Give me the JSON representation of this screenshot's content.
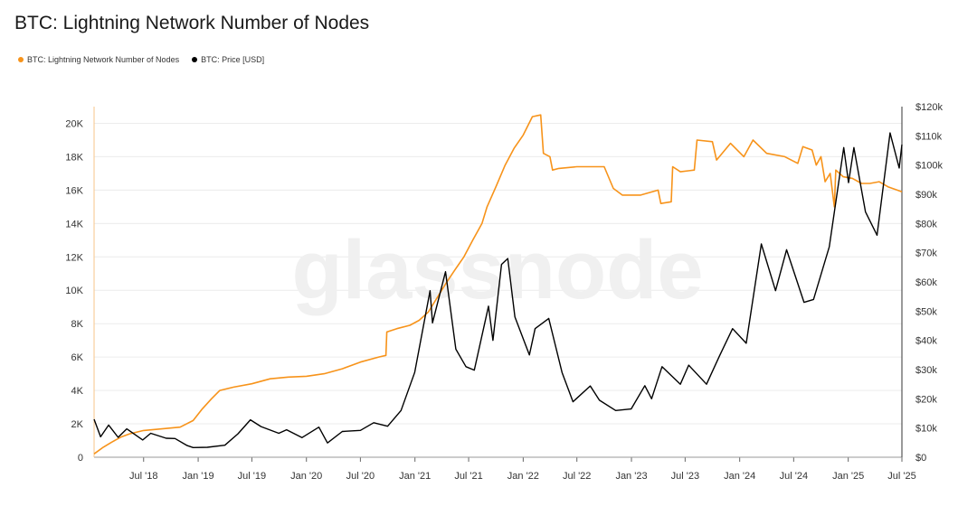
{
  "colors": {
    "nodes": "#f7931a",
    "price": "#000000",
    "grid": "#ececec",
    "watermark": "#f0f0f0"
  },
  "watermark": "glassnode",
  "chart_data": {
    "type": "line",
    "title": "BTC: Lightning Network Number of Nodes",
    "legend_position": "top-left",
    "grid": true,
    "x_ticks": [
      "Jul '18",
      "Jan '19",
      "Jul '19",
      "Jan '20",
      "Jul '20",
      "Jan '21",
      "Jul '21",
      "Jan '22",
      "Jul '22",
      "Jan '23",
      "Jul '23",
      "Jan '24",
      "Jul '24",
      "Jan '25",
      "Jul '25"
    ],
    "x_range": [
      "2018-01-15",
      "2025-07-01"
    ],
    "y_left": {
      "ticks": [
        "0",
        "2K",
        "4K",
        "6K",
        "8K",
        "10K",
        "12K",
        "14K",
        "16K",
        "18K",
        "20K"
      ],
      "ylim": [
        0,
        21000
      ]
    },
    "y_right": {
      "ticks": [
        "$0",
        "$10k",
        "$20k",
        "$30k",
        "$40k",
        "$50k",
        "$60k",
        "$70k",
        "$80k",
        "$90k",
        "$100k",
        "$110k",
        "$120k"
      ],
      "ylim": [
        0,
        120000
      ]
    },
    "series": [
      {
        "name": "BTC: Lightning Network Number of Nodes",
        "axis": "left",
        "points": [
          [
            "2018-01-15",
            200
          ],
          [
            "2018-02-15",
            600
          ],
          [
            "2018-03-15",
            900
          ],
          [
            "2018-04-15",
            1200
          ],
          [
            "2018-05-15",
            1400
          ],
          [
            "2018-07-01",
            1600
          ],
          [
            "2018-09-01",
            1700
          ],
          [
            "2018-11-01",
            1800
          ],
          [
            "2018-12-15",
            2200
          ],
          [
            "2019-01-15",
            2900
          ],
          [
            "2019-02-15",
            3500
          ],
          [
            "2019-03-15",
            4000
          ],
          [
            "2019-05-01",
            4200
          ],
          [
            "2019-07-01",
            4400
          ],
          [
            "2019-09-01",
            4700
          ],
          [
            "2019-11-01",
            4800
          ],
          [
            "2020-01-01",
            4850
          ],
          [
            "2020-03-01",
            5000
          ],
          [
            "2020-05-01",
            5300
          ],
          [
            "2020-07-01",
            5700
          ],
          [
            "2020-09-01",
            6000
          ],
          [
            "2020-09-25",
            6100
          ],
          [
            "2020-09-28",
            7500
          ],
          [
            "2020-11-01",
            7700
          ],
          [
            "2020-12-15",
            7900
          ],
          [
            "2021-01-15",
            8200
          ],
          [
            "2021-02-15",
            8700
          ],
          [
            "2021-03-15",
            9500
          ],
          [
            "2021-04-15",
            10400
          ],
          [
            "2021-05-15",
            11200
          ],
          [
            "2021-06-15",
            12000
          ],
          [
            "2021-07-15",
            13000
          ],
          [
            "2021-08-15",
            14000
          ],
          [
            "2021-09-01",
            15000
          ],
          [
            "2021-10-01",
            16200
          ],
          [
            "2021-11-01",
            17500
          ],
          [
            "2021-12-01",
            18500
          ],
          [
            "2022-01-01",
            19300
          ],
          [
            "2022-02-01",
            20400
          ],
          [
            "2022-03-01",
            20500
          ],
          [
            "2022-03-10",
            18200
          ],
          [
            "2022-04-01",
            18000
          ],
          [
            "2022-04-10",
            17200
          ],
          [
            "2022-05-01",
            17300
          ],
          [
            "2022-07-01",
            17400
          ],
          [
            "2022-10-01",
            17400
          ],
          [
            "2022-11-01",
            16100
          ],
          [
            "2022-12-01",
            15700
          ],
          [
            "2023-02-01",
            15700
          ],
          [
            "2023-04-01",
            16000
          ],
          [
            "2023-04-10",
            15200
          ],
          [
            "2023-05-15",
            15300
          ],
          [
            "2023-05-20",
            17400
          ],
          [
            "2023-06-15",
            17100
          ],
          [
            "2023-08-01",
            17200
          ],
          [
            "2023-08-10",
            19000
          ],
          [
            "2023-10-01",
            18900
          ],
          [
            "2023-10-15",
            17800
          ],
          [
            "2023-12-01",
            18800
          ],
          [
            "2024-01-15",
            18000
          ],
          [
            "2024-02-15",
            19000
          ],
          [
            "2024-04-01",
            18200
          ],
          [
            "2024-06-01",
            18000
          ],
          [
            "2024-07-15",
            17600
          ],
          [
            "2024-08-01",
            18600
          ],
          [
            "2024-09-01",
            18400
          ],
          [
            "2024-09-15",
            17500
          ],
          [
            "2024-10-01",
            18000
          ],
          [
            "2024-10-15",
            16500
          ],
          [
            "2024-11-01",
            17000
          ],
          [
            "2024-11-15",
            15000
          ],
          [
            "2024-11-20",
            17200
          ],
          [
            "2024-12-15",
            16800
          ],
          [
            "2025-01-15",
            16700
          ],
          [
            "2025-02-15",
            16400
          ],
          [
            "2025-03-15",
            16400
          ],
          [
            "2025-04-15",
            16500
          ],
          [
            "2025-05-15",
            16200
          ],
          [
            "2025-06-15",
            16000
          ],
          [
            "2025-07-01",
            15900
          ]
        ]
      },
      {
        "name": "BTC: Price [USD]",
        "axis": "right",
        "points": [
          [
            "2018-01-15",
            13000
          ],
          [
            "2018-02-06",
            7000
          ],
          [
            "2018-03-05",
            11000
          ],
          [
            "2018-04-06",
            6800
          ],
          [
            "2018-05-05",
            9700
          ],
          [
            "2018-06-28",
            5900
          ],
          [
            "2018-07-25",
            8200
          ],
          [
            "2018-09-15",
            6500
          ],
          [
            "2018-10-15",
            6400
          ],
          [
            "2018-11-25",
            4000
          ],
          [
            "2018-12-15",
            3300
          ],
          [
            "2019-02-01",
            3400
          ],
          [
            "2019-04-01",
            4100
          ],
          [
            "2019-05-15",
            8000
          ],
          [
            "2019-06-26",
            12800
          ],
          [
            "2019-08-01",
            10500
          ],
          [
            "2019-09-30",
            8200
          ],
          [
            "2019-10-26",
            9400
          ],
          [
            "2019-12-17",
            6700
          ],
          [
            "2020-02-12",
            10300
          ],
          [
            "2020-03-12",
            4900
          ],
          [
            "2020-05-01",
            8800
          ],
          [
            "2020-07-01",
            9200
          ],
          [
            "2020-08-15",
            11800
          ],
          [
            "2020-10-01",
            10600
          ],
          [
            "2020-11-15",
            16000
          ],
          [
            "2020-12-31",
            29000
          ],
          [
            "2021-02-21",
            57000
          ],
          [
            "2021-03-01",
            46000
          ],
          [
            "2021-04-14",
            63500
          ],
          [
            "2021-05-19",
            37000
          ],
          [
            "2021-06-22",
            31000
          ],
          [
            "2021-07-20",
            29800
          ],
          [
            "2021-09-06",
            51700
          ],
          [
            "2021-09-21",
            40000
          ],
          [
            "2021-10-20",
            66000
          ],
          [
            "2021-11-10",
            68000
          ],
          [
            "2021-12-04",
            48000
          ],
          [
            "2022-01-22",
            35000
          ],
          [
            "2022-02-10",
            44000
          ],
          [
            "2022-03-28",
            47500
          ],
          [
            "2022-05-12",
            29000
          ],
          [
            "2022-06-18",
            19000
          ],
          [
            "2022-08-15",
            24400
          ],
          [
            "2022-09-15",
            19500
          ],
          [
            "2022-11-09",
            16000
          ],
          [
            "2022-12-31",
            16500
          ],
          [
            "2023-02-15",
            24500
          ],
          [
            "2023-03-10",
            20000
          ],
          [
            "2023-04-14",
            31000
          ],
          [
            "2023-06-15",
            25000
          ],
          [
            "2023-07-13",
            31500
          ],
          [
            "2023-09-11",
            25000
          ],
          [
            "2023-10-24",
            34500
          ],
          [
            "2023-12-08",
            44000
          ],
          [
            "2024-01-23",
            39000
          ],
          [
            "2024-03-14",
            73000
          ],
          [
            "2024-05-01",
            57000
          ],
          [
            "2024-06-07",
            71000
          ],
          [
            "2024-08-05",
            53000
          ],
          [
            "2024-09-06",
            54000
          ],
          [
            "2024-10-29",
            72000
          ],
          [
            "2024-12-17",
            106000
          ],
          [
            "2025-01-02",
            94000
          ],
          [
            "2025-01-20",
            106000
          ],
          [
            "2025-02-28",
            84000
          ],
          [
            "2025-04-08",
            76000
          ],
          [
            "2025-05-22",
            111000
          ],
          [
            "2025-06-22",
            99000
          ],
          [
            "2025-07-01",
            107000
          ]
        ]
      }
    ]
  }
}
